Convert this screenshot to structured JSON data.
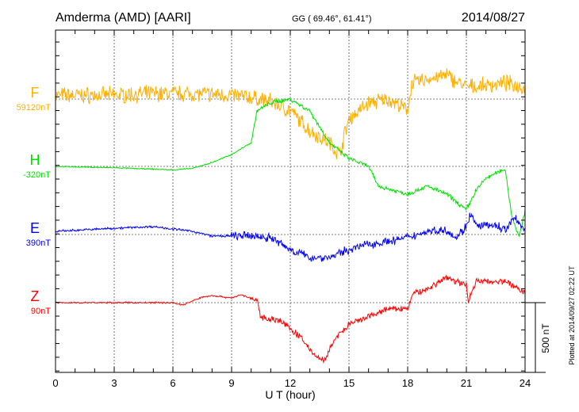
{
  "chart_data": {
    "type": "line",
    "title": "Amderma (AMD)  [AARI]",
    "coords": "GG ( 69.46°,  61.41°)",
    "date": "2014/08/27",
    "xlabel": "U T (hour)",
    "xlim": [
      0,
      24
    ],
    "xticks": [
      "0",
      "3",
      "6",
      "9",
      "12",
      "15",
      "18",
      "21",
      "24"
    ],
    "scale_label": "500 nT",
    "scale_nT": 500,
    "plotted_note": "Plotted at 2014/09/27 02:22 UT",
    "grid": true,
    "series": [
      {
        "name": "F",
        "baseline_label": "59120nT",
        "color": "#FFB000",
        "noise": 45,
        "points": [
          [
            0,
            28
          ],
          [
            3,
            28
          ],
          [
            5,
            40
          ],
          [
            7,
            40
          ],
          [
            9,
            28
          ],
          [
            10,
            11
          ],
          [
            11,
            -17
          ],
          [
            12,
            -85
          ],
          [
            13,
            -227
          ],
          [
            14,
            -312
          ],
          [
            14.5,
            -398
          ],
          [
            15,
            -142
          ],
          [
            16,
            -28
          ],
          [
            17,
            0
          ],
          [
            18,
            -85
          ],
          [
            18.2,
            114
          ],
          [
            19,
            142
          ],
          [
            20,
            170
          ],
          [
            21,
            85
          ],
          [
            22,
            97
          ],
          [
            23,
            114
          ],
          [
            24,
            85
          ]
        ]
      },
      {
        "name": "H",
        "baseline_label": "-320nT",
        "color": "#00E000",
        "noise": 12,
        "points": [
          [
            0,
            0
          ],
          [
            3,
            -10
          ],
          [
            6,
            -25
          ],
          [
            7,
            -15
          ],
          [
            8,
            28
          ],
          [
            9,
            85
          ],
          [
            10,
            170
          ],
          [
            10.3,
            398
          ],
          [
            11,
            455
          ],
          [
            12,
            483
          ],
          [
            13,
            398
          ],
          [
            14,
            170
          ],
          [
            15,
            57
          ],
          [
            16,
            0
          ],
          [
            16.5,
            -142
          ],
          [
            18,
            -199
          ],
          [
            19,
            -142
          ],
          [
            20,
            -199
          ],
          [
            21,
            -312
          ],
          [
            21.5,
            -170
          ],
          [
            22,
            -85
          ],
          [
            22.8,
            -28
          ],
          [
            23,
            -28
          ],
          [
            23.3,
            -341
          ],
          [
            23.7,
            -511
          ],
          [
            24,
            -312
          ]
        ]
      },
      {
        "name": "E",
        "baseline_label": "390nT",
        "color": "#0000FF",
        "noise": 25,
        "points": [
          [
            0,
            23
          ],
          [
            3,
            45
          ],
          [
            5,
            57
          ],
          [
            7,
            23
          ],
          [
            8,
            -11
          ],
          [
            10,
            -11
          ],
          [
            11,
            -23
          ],
          [
            12,
            -108
          ],
          [
            13,
            -165
          ],
          [
            14,
            -165
          ],
          [
            15,
            -108
          ],
          [
            16,
            -68
          ],
          [
            17,
            -51
          ],
          [
            18,
            -23
          ],
          [
            19,
            23
          ],
          [
            20,
            34
          ],
          [
            20.5,
            -23
          ],
          [
            21,
            62
          ],
          [
            21.2,
            147
          ],
          [
            21.5,
            62
          ],
          [
            22.5,
            62
          ],
          [
            23,
            34
          ],
          [
            23.5,
            119
          ],
          [
            24,
            34
          ]
        ]
      },
      {
        "name": "Z",
        "baseline_label": "90nT",
        "color": "#FF0000",
        "noise": 18,
        "points": [
          [
            0,
            0
          ],
          [
            6,
            0
          ],
          [
            6.5,
            -17
          ],
          [
            7.5,
            40
          ],
          [
            8,
            51
          ],
          [
            9,
            34
          ],
          [
            9.5,
            57
          ],
          [
            10.3,
            11
          ],
          [
            10.5,
            -102
          ],
          [
            11.5,
            -130
          ],
          [
            12.5,
            -244
          ],
          [
            13.3,
            -386
          ],
          [
            13.8,
            -415
          ],
          [
            14.2,
            -273
          ],
          [
            15,
            -159
          ],
          [
            16,
            -102
          ],
          [
            17,
            -45
          ],
          [
            18,
            -45
          ],
          [
            18.3,
            68
          ],
          [
            19,
            97
          ],
          [
            20,
            182
          ],
          [
            20.5,
            153
          ],
          [
            21,
            125
          ],
          [
            21.1,
            23
          ],
          [
            21.5,
            153
          ],
          [
            22.5,
            153
          ],
          [
            23,
            153
          ],
          [
            24,
            68
          ]
        ]
      }
    ]
  }
}
